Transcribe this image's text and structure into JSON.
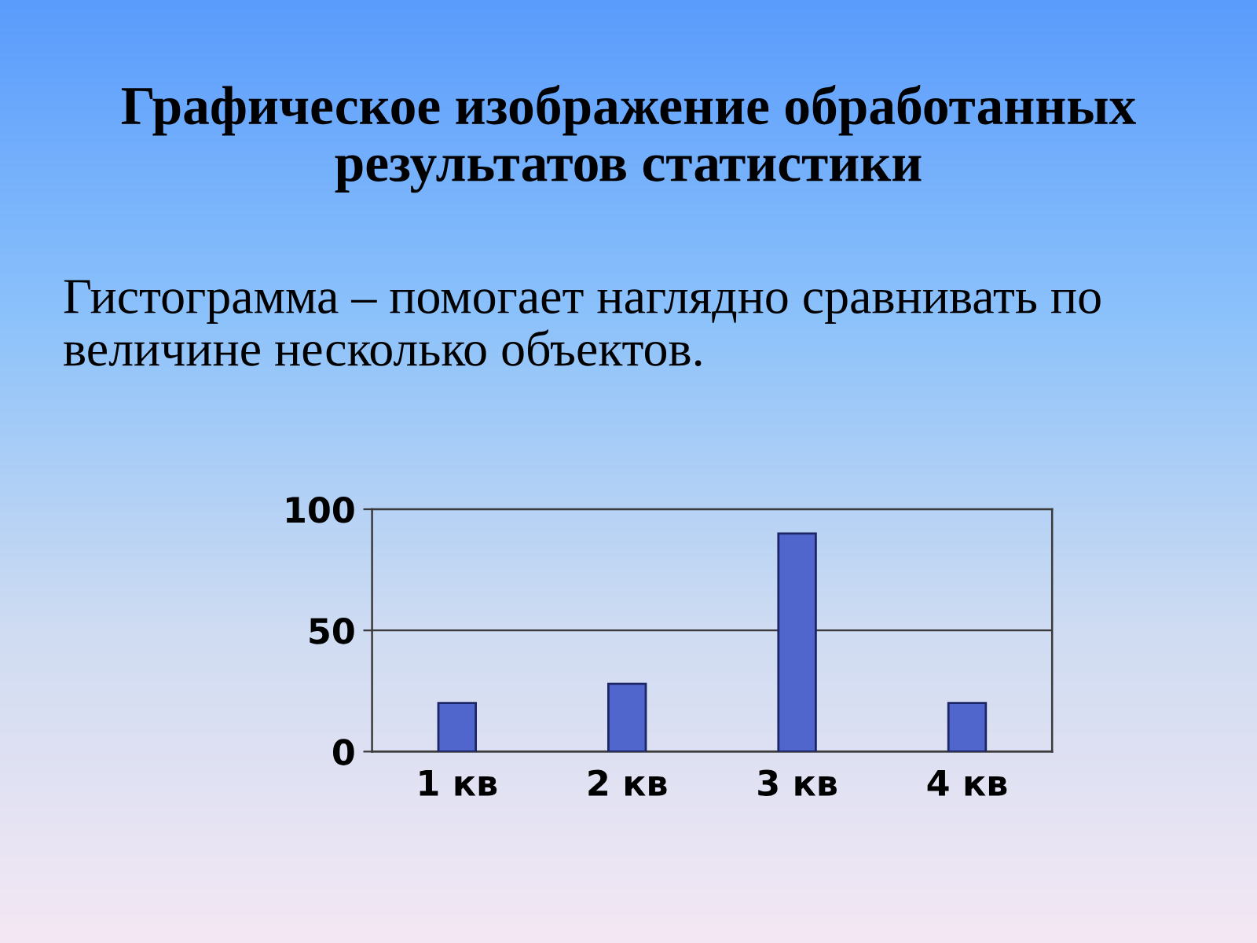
{
  "chart_data": {
    "type": "bar",
    "title": "Графическое изображение обработанных результатов статистики",
    "subtitle": "Гистограмма – помогает наглядно сравнивать по величине несколько объектов.",
    "categories": [
      "1 кв",
      "2 кв",
      "3 кв",
      "4 кв"
    ],
    "values": [
      20,
      28,
      90,
      20
    ],
    "color": "#5066cc",
    "ylim": [
      0,
      100
    ],
    "yticks": [
      0,
      50,
      100
    ],
    "grid": "y"
  }
}
